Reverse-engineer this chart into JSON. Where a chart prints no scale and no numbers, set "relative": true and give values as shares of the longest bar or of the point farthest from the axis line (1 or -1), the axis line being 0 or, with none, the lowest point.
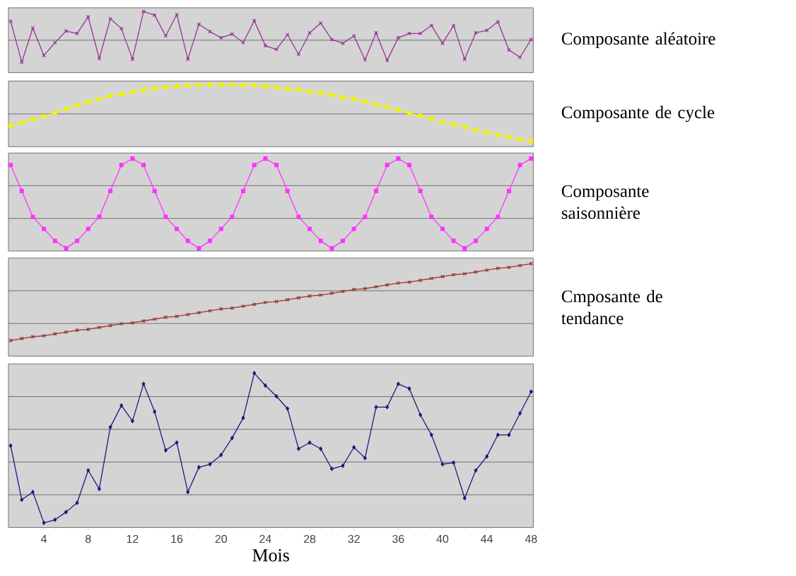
{
  "chart_data": [
    {
      "type": "line",
      "x": [
        1,
        2,
        3,
        4,
        5,
        6,
        7,
        8,
        9,
        10,
        11,
        12,
        13,
        14,
        15,
        16,
        17,
        18,
        19,
        20,
        21,
        22,
        23,
        24,
        25,
        26,
        27,
        28,
        29,
        30,
        31,
        32,
        33,
        34,
        35,
        36,
        37,
        38,
        39,
        40,
        41,
        42,
        43,
        44,
        45,
        46,
        47,
        48
      ],
      "xlim": [
        0.8,
        48.2
      ],
      "relative": true,
      "ref_lines": [
        {
          "axis": "y",
          "value": 0.53,
          "color": "#666666"
        }
      ],
      "tick_labels": false,
      "marker": "cross",
      "series": [
        {
          "name": "Composante aléatoire",
          "color": "#993399",
          "values": [
            0.84,
            0.17,
            0.73,
            0.28,
            0.49,
            0.68,
            0.64,
            0.91,
            0.23,
            0.88,
            0.72,
            0.22,
            1,
            0.94,
            0.6,
            0.95,
            0.22,
            0.79,
            0.67,
            0.57,
            0.63,
            0.49,
            0.85,
            0.44,
            0.38,
            0.62,
            0.3,
            0.65,
            0.81,
            0.54,
            0.48,
            0.6,
            0.21,
            0.65,
            0.2,
            0.57,
            0.64,
            0.64,
            0.77,
            0.48,
            0.77,
            0.22,
            0.65,
            0.69,
            0.83,
            0.37,
            0.25,
            0.54
          ]
        }
      ]
    },
    {
      "type": "line",
      "x": [
        1,
        2,
        3,
        4,
        5,
        6,
        7,
        8,
        9,
        10,
        11,
        12,
        13,
        14,
        15,
        16,
        17,
        18,
        19,
        20,
        21,
        22,
        23,
        24,
        25,
        26,
        27,
        28,
        29,
        30,
        31,
        32,
        33,
        34,
        35,
        36,
        37,
        38,
        39,
        40,
        41,
        42,
        43,
        44,
        45,
        46,
        47,
        48
      ],
      "xlim": [
        0.8,
        48.2
      ],
      "relative": true,
      "ref_lines": [
        {
          "axis": "y",
          "value": 0.53,
          "color": "#666666"
        }
      ],
      "tick_labels": false,
      "marker": "square",
      "series": [
        {
          "name": "Composante de cycle",
          "color": "#f2f200",
          "values": [
            0.34,
            0.39,
            0.44,
            0.49,
            0.55,
            0.61,
            0.67,
            0.72,
            0.77,
            0.82,
            0.85,
            0.89,
            0.92,
            0.94,
            0.96,
            0.98,
            0.99,
            0.99,
            1,
            1,
            1,
            0.99,
            0.99,
            0.98,
            0.96,
            0.94,
            0.92,
            0.89,
            0.87,
            0.84,
            0.8,
            0.77,
            0.73,
            0.68,
            0.64,
            0.59,
            0.54,
            0.5,
            0.45,
            0.4,
            0.36,
            0.32,
            0.27,
            0.23,
            0.19,
            0.16,
            0.12,
            0.09
          ]
        }
      ]
    },
    {
      "type": "line",
      "x": [
        1,
        2,
        3,
        4,
        5,
        6,
        7,
        8,
        9,
        10,
        11,
        12,
        13,
        14,
        15,
        16,
        17,
        18,
        19,
        20,
        21,
        22,
        23,
        24,
        25,
        26,
        27,
        28,
        29,
        30,
        31,
        32,
        33,
        34,
        35,
        36,
        37,
        38,
        39,
        40,
        41,
        42,
        43,
        44,
        45,
        46,
        47,
        48
      ],
      "xlim": [
        0.8,
        48.2
      ],
      "relative": true,
      "ref_lines": [
        {
          "axis": "y",
          "value": 0.353,
          "color": "#666666"
        },
        {
          "axis": "y",
          "value": 0.707,
          "color": "#666666"
        }
      ],
      "tick_labels": false,
      "marker": "square",
      "series": [
        {
          "name": "Composante saisonnière",
          "color": "#ff33ff",
          "values": [
            0.93,
            0.65,
            0.37,
            0.24,
            0.11,
            0.03,
            0.11,
            0.24,
            0.37,
            0.65,
            0.93,
            1,
            0.93,
            0.65,
            0.37,
            0.24,
            0.11,
            0.03,
            0.11,
            0.24,
            0.37,
            0.65,
            0.93,
            1,
            0.93,
            0.65,
            0.37,
            0.24,
            0.11,
            0.03,
            0.11,
            0.24,
            0.37,
            0.65,
            0.93,
            1,
            0.93,
            0.65,
            0.37,
            0.24,
            0.11,
            0.03,
            0.11,
            0.24,
            0.37,
            0.65,
            0.93,
            1
          ]
        }
      ]
    },
    {
      "type": "line",
      "x": [
        1,
        2,
        3,
        4,
        5,
        6,
        7,
        8,
        9,
        10,
        11,
        12,
        13,
        14,
        15,
        16,
        17,
        18,
        19,
        20,
        21,
        22,
        23,
        24,
        25,
        26,
        27,
        28,
        29,
        30,
        31,
        32,
        33,
        34,
        35,
        36,
        37,
        38,
        39,
        40,
        41,
        42,
        43,
        44,
        45,
        46,
        47,
        48
      ],
      "xlim": [
        0.8,
        48.2
      ],
      "relative": true,
      "ref_lines": [
        {
          "axis": "y",
          "value": 0.353,
          "color": "#666666"
        },
        {
          "axis": "y",
          "value": 0.707,
          "color": "#666666"
        }
      ],
      "tick_labels": false,
      "marker": "cross",
      "series": [
        {
          "name": "Cmposante de tendance",
          "color": "#993333",
          "values": [
            0.17,
            0.19,
            0.21,
            0.22,
            0.24,
            0.26,
            0.28,
            0.29,
            0.31,
            0.33,
            0.35,
            0.36,
            0.38,
            0.4,
            0.42,
            0.43,
            0.45,
            0.47,
            0.49,
            0.51,
            0.52,
            0.54,
            0.56,
            0.58,
            0.59,
            0.61,
            0.63,
            0.65,
            0.66,
            0.68,
            0.7,
            0.72,
            0.73,
            0.75,
            0.77,
            0.79,
            0.8,
            0.82,
            0.84,
            0.86,
            0.88,
            0.89,
            0.91,
            0.93,
            0.95,
            0.96,
            0.98,
            1.0
          ]
        }
      ]
    },
    {
      "type": "line",
      "x": [
        1,
        2,
        3,
        4,
        5,
        6,
        7,
        8,
        9,
        10,
        11,
        12,
        13,
        14,
        15,
        16,
        17,
        18,
        19,
        20,
        21,
        22,
        23,
        24,
        25,
        26,
        27,
        28,
        29,
        30,
        31,
        32,
        33,
        34,
        35,
        36,
        37,
        38,
        39,
        40,
        41,
        42,
        43,
        44,
        45,
        46,
        47,
        48
      ],
      "xlim": [
        0.8,
        48.2
      ],
      "xticks": [
        4,
        8,
        12,
        16,
        20,
        24,
        28,
        32,
        36,
        40,
        44,
        48
      ],
      "xlabel": "Mois",
      "relative": true,
      "ref_lines": [
        {
          "axis": "y",
          "value": 0.212,
          "color": "#666666"
        },
        {
          "axis": "y",
          "value": 0.424,
          "color": "#666666"
        },
        {
          "axis": "y",
          "value": 0.636,
          "color": "#666666"
        },
        {
          "axis": "y",
          "value": 0.848,
          "color": "#666666"
        }
      ],
      "tick_labels": "x",
      "marker": "diamond",
      "series": [
        {
          "color": "#1a1a80",
          "values": [
            0.53,
            0.18,
            0.23,
            0.03,
            0.05,
            0.1,
            0.16,
            0.37,
            0.25,
            0.65,
            0.79,
            0.69,
            0.93,
            0.75,
            0.5,
            0.55,
            0.23,
            0.39,
            0.41,
            0.47,
            0.58,
            0.71,
            1,
            0.92,
            0.85,
            0.77,
            0.51,
            0.55,
            0.51,
            0.38,
            0.4,
            0.52,
            0.45,
            0.78,
            0.78,
            0.93,
            0.9,
            0.73,
            0.6,
            0.41,
            0.42,
            0.19,
            0.37,
            0.46,
            0.6,
            0.6,
            0.74,
            0.88
          ]
        }
      ]
    }
  ]
}
